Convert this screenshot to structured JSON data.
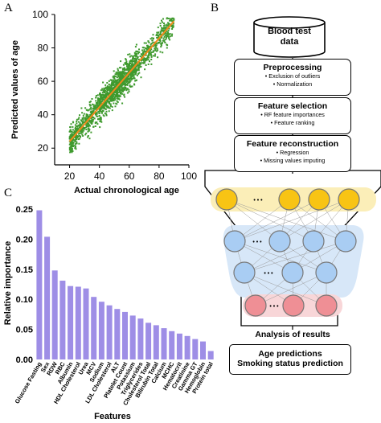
{
  "panels": {
    "a": "A",
    "b": "B",
    "c": "C"
  },
  "panel_a": {
    "chart_data": {
      "type": "scatter",
      "xlabel": "Actual chronological age",
      "ylabel": "Predicted values of age",
      "xticks": [
        "20",
        "40",
        "60",
        "80",
        "100"
      ],
      "yticks": [
        "20",
        "40",
        "60",
        "80",
        "100"
      ],
      "xlim": [
        10,
        100
      ],
      "ylim": [
        10,
        100
      ],
      "fit_line": {
        "x": [
          20,
          90
        ],
        "y": [
          24,
          96
        ]
      },
      "point_color": "#3f9a2e",
      "line_color": "#f08a1c"
    }
  },
  "panel_b": {
    "database": {
      "line1": "Blood test",
      "line2": "data"
    },
    "steps": [
      {
        "title": "Preprocessing",
        "items": [
          "• Exclusion of outliers",
          "• Normalization"
        ]
      },
      {
        "title": "Feature selection",
        "items": [
          "• RF feature importances",
          "• Feature ranking"
        ]
      },
      {
        "title": "Feature reconstruction",
        "items": [
          "• Regression",
          "• Missing values imputing"
        ]
      }
    ],
    "network": {
      "ellipsis": "• • •",
      "layer_colors": [
        "#f8c414",
        "#a9cdf3",
        "#a9cdf3",
        "#ef8f95"
      ],
      "band_colors": [
        "#fbeeb8",
        "#d7e7f8",
        "#d7e7f8",
        "#f8d6d8"
      ]
    },
    "analysis_label": "Analysis of results",
    "results": {
      "line1": "Age predictions",
      "line2": "Smoking status prediction"
    }
  },
  "panel_c": {
    "chart_data": {
      "type": "bar",
      "xlabel": "Features",
      "ylabel": "Relative importance",
      "categories": [
        "Glucose Fasting",
        "Sex",
        "RDW",
        "RBC",
        "Albumin",
        "HDL Cholesterol",
        "Urea",
        "MCV",
        "Sodium",
        "LDL Cholesterol",
        "ALT",
        "Platelet Count",
        "Potassium",
        "Triglycerides",
        "Cholesterol Total",
        "Bilirubin Total",
        "Calcium",
        "MCHC",
        "Hematocrit",
        "Creatinine",
        "Gamma GT",
        "Hemoglobin",
        "Protein total"
      ],
      "values": [
        0.248,
        0.204,
        0.148,
        0.131,
        0.122,
        0.121,
        0.118,
        0.104,
        0.096,
        0.09,
        0.084,
        0.079,
        0.073,
        0.068,
        0.061,
        0.057,
        0.052,
        0.047,
        0.043,
        0.039,
        0.034,
        0.03,
        0.014
      ],
      "ylim": [
        0,
        0.25
      ],
      "yticks": [
        "0.00",
        "0.05",
        "0.10",
        "0.15",
        "0.20",
        "0.25"
      ],
      "bar_color": "#9e8ee6"
    }
  }
}
